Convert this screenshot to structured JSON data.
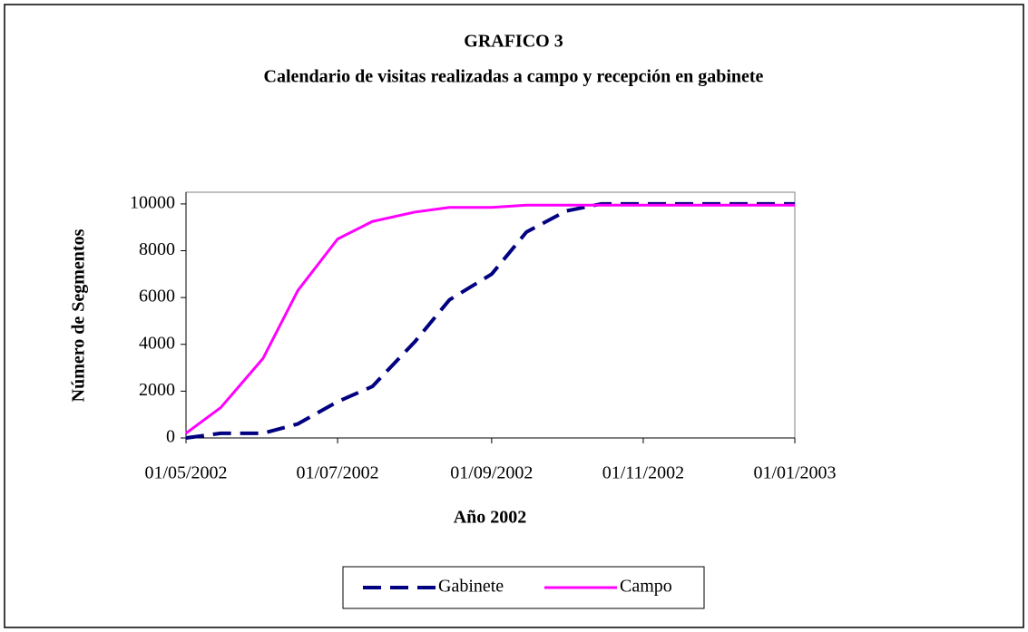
{
  "chart_data": {
    "type": "line",
    "title": "GRAFICO 3",
    "subtitle": "Calendario de visitas realizadas a campo y recepción en gabinete",
    "x_label": "Año 2002",
    "y_label": "Número de Segmentos",
    "x": [
      "2002-05-01",
      "2002-05-15",
      "2002-06-01",
      "2002-06-15",
      "2002-07-01",
      "2002-07-15",
      "2002-08-01",
      "2002-08-15",
      "2002-09-01",
      "2002-09-15",
      "2002-10-01",
      "2002-10-15",
      "2002-11-01",
      "2002-11-15",
      "2002-12-01",
      "2002-12-15",
      "2003-01-01"
    ],
    "series": [
      {
        "name": "Gabinete",
        "color": "#000080",
        "line_style": "dashed",
        "values": [
          0,
          200,
          200,
          600,
          1550,
          2200,
          4100,
          5900,
          7000,
          8800,
          9700,
          10000,
          10000,
          10000,
          10000,
          10000,
          10000
        ]
      },
      {
        "name": "Campo",
        "color": "#ff00ff",
        "line_style": "solid",
        "values": [
          200,
          1300,
          3400,
          6300,
          8500,
          9250,
          9650,
          9850,
          9850,
          9950,
          9950,
          9950,
          9950,
          9950,
          9950,
          9950,
          9950
        ]
      }
    ],
    "xlim": [
      "2002-05-01",
      "2003-01-01"
    ],
    "xticks": [
      {
        "value": "2002-05-01",
        "label": "01/05/2002"
      },
      {
        "value": "2002-07-01",
        "label": "01/07/2002"
      },
      {
        "value": "2002-09-01",
        "label": "01/09/2002"
      },
      {
        "value": "2002-11-01",
        "label": "01/11/2002"
      },
      {
        "value": "2003-01-01",
        "label": "01/01/2003"
      }
    ],
    "ylim": [
      0,
      10500
    ],
    "yticks": [
      0,
      2000,
      4000,
      6000,
      8000,
      10000
    ],
    "grid": false,
    "legend": "bottom"
  }
}
